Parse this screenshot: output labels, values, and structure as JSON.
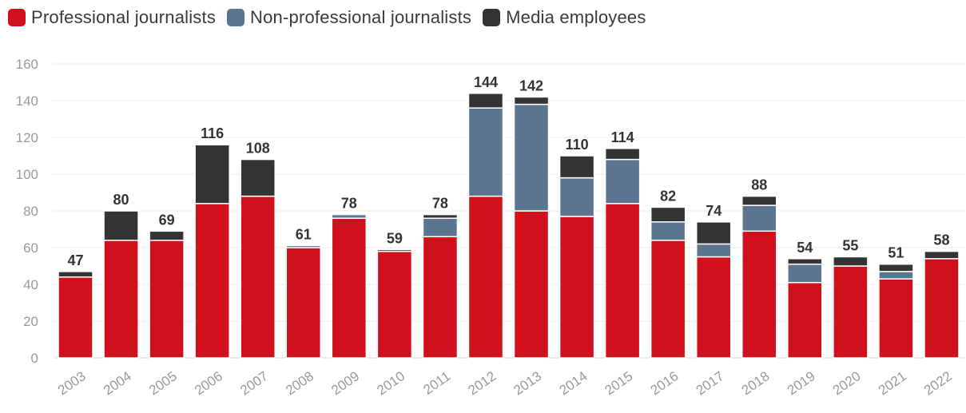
{
  "legend": [
    {
      "label": "Professional journalists",
      "color": "#d0111b"
    },
    {
      "label": "Non-professional journalists",
      "color": "#5b7591"
    },
    {
      "label": "Media employees",
      "color": "#333333"
    }
  ],
  "chart_data": {
    "type": "bar",
    "stacked": true,
    "categories": [
      "2003",
      "2004",
      "2005",
      "2006",
      "2007",
      "2008",
      "2009",
      "2010",
      "2011",
      "2012",
      "2013",
      "2014",
      "2015",
      "2016",
      "2017",
      "2018",
      "2019",
      "2020",
      "2021",
      "2022"
    ],
    "series": [
      {
        "name": "Professional journalists",
        "color": "#d0111b",
        "values": [
          44,
          64,
          64,
          84,
          88,
          60,
          76,
          58,
          66,
          88,
          80,
          77,
          84,
          64,
          55,
          69,
          41,
          50,
          43,
          54
        ]
      },
      {
        "name": "Non-professional journalists",
        "color": "#5b7591",
        "values": [
          0,
          0,
          0,
          0,
          0,
          0,
          2,
          0,
          10,
          48,
          58,
          21,
          24,
          10,
          7,
          14,
          10,
          0,
          4,
          0
        ]
      },
      {
        "name": "Media employees",
        "color": "#333333",
        "values": [
          3,
          16,
          5,
          32,
          20,
          1,
          0,
          1,
          2,
          8,
          4,
          12,
          6,
          8,
          12,
          5,
          3,
          5,
          4,
          4
        ]
      }
    ],
    "totals": [
      47,
      80,
      69,
      116,
      108,
      61,
      78,
      59,
      78,
      144,
      142,
      110,
      114,
      82,
      74,
      88,
      54,
      55,
      51,
      58
    ],
    "ylim": [
      0,
      160
    ],
    "yticks": [
      0,
      20,
      40,
      60,
      80,
      100,
      120,
      140,
      160
    ],
    "grid": true,
    "legend_position": "top-left"
  }
}
